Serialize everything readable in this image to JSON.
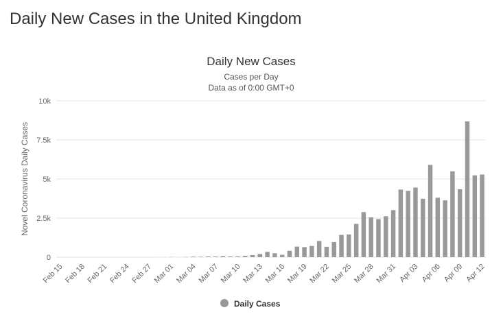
{
  "page": {
    "heading": "Daily New Cases in the United Kingdom"
  },
  "colors": {
    "bar": "#999999",
    "grid": "#e6e6e6",
    "text": "#333333"
  },
  "chart_data": {
    "type": "bar",
    "title": "Daily New Cases",
    "subtitle": "Cases per Day",
    "subtitle2": "Data as of 0:00 GMT+0",
    "ylabel": "Novel Coronavirus Daily Cases",
    "xlabel": "",
    "ylim": [
      0,
      10000
    ],
    "yticks": [
      {
        "value": 0,
        "label": "0"
      },
      {
        "value": 2500,
        "label": "2.5k"
      },
      {
        "value": 5000,
        "label": "5k"
      },
      {
        "value": 7500,
        "label": "7.5k"
      },
      {
        "value": 10000,
        "label": "10k"
      }
    ],
    "categories": [
      "Feb 15",
      "Feb 16",
      "Feb 17",
      "Feb 18",
      "Feb 19",
      "Feb 20",
      "Feb 21",
      "Feb 22",
      "Feb 23",
      "Feb 24",
      "Feb 25",
      "Feb 26",
      "Feb 27",
      "Feb 28",
      "Feb 29",
      "Mar 01",
      "Mar 02",
      "Mar 03",
      "Mar 04",
      "Mar 05",
      "Mar 06",
      "Mar 07",
      "Mar 08",
      "Mar 09",
      "Mar 10",
      "Mar 11",
      "Mar 12",
      "Mar 13",
      "Mar 14",
      "Mar 15",
      "Mar 16",
      "Mar 17",
      "Mar 18",
      "Mar 19",
      "Mar 20",
      "Mar 21",
      "Mar 22",
      "Mar 23",
      "Mar 24",
      "Mar 25",
      "Mar 26",
      "Mar 27",
      "Mar 28",
      "Mar 29",
      "Mar 30",
      "Mar 31",
      "Apr 01",
      "Apr 02",
      "Apr 03",
      "Apr 04",
      "Apr 05",
      "Apr 06",
      "Apr 07",
      "Apr 08",
      "Apr 09",
      "Apr 10",
      "Apr 11",
      "Apr 12"
    ],
    "xtick_labels": [
      "Feb 15",
      "Feb 18",
      "Feb 21",
      "Feb 24",
      "Feb 27",
      "Mar 01",
      "Mar 04",
      "Mar 07",
      "Mar 10",
      "Mar 13",
      "Mar 16",
      "Mar 19",
      "Mar 22",
      "Mar 25",
      "Mar 28",
      "Mar 31",
      "Apr 03",
      "Apr 06",
      "Apr 09",
      "Apr 12"
    ],
    "series": [
      {
        "name": "Daily Cases",
        "values": [
          0,
          0,
          0,
          0,
          0,
          0,
          0,
          0,
          0,
          0,
          0,
          0,
          2,
          5,
          3,
          12,
          4,
          11,
          34,
          30,
          48,
          43,
          67,
          46,
          50,
          83,
          134,
          208,
          342,
          251,
          152,
          407,
          676,
          643,
          714,
          1035,
          665,
          967,
          1427,
          1452,
          2129,
          2885,
          2546,
          2433,
          2619,
          3009,
          4324,
          4244,
          4450,
          3735,
          5903,
          3802,
          3634,
          5491,
          4344,
          8681,
          5233,
          5288
        ]
      }
    ],
    "legend": {
      "position": "bottom-center"
    }
  }
}
